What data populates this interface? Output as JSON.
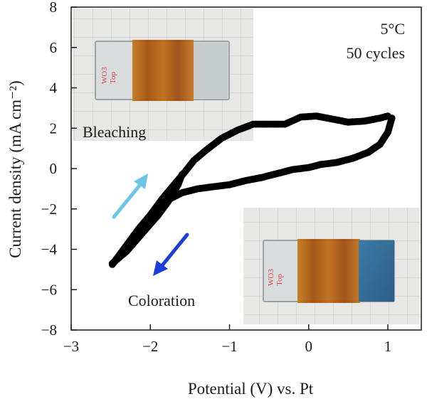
{
  "chart_data": {
    "type": "scatter",
    "title": "",
    "xlabel": "Potential (V) vs. Pt",
    "ylabel": "Current density (mA cm⁻²)",
    "xlim": [
      -3,
      1.2
    ],
    "ylim": [
      -8,
      8
    ],
    "x_ticks": [
      -3,
      -2,
      -1,
      0,
      1
    ],
    "x_tick_labels": [
      "−3",
      "−2",
      "−1",
      "0",
      "1"
    ],
    "y_ticks": [
      -8,
      -6,
      -4,
      -2,
      0,
      2,
      4,
      6,
      8
    ],
    "y_tick_labels": [
      "−8",
      "−6",
      "−4",
      "−2",
      "0",
      "2",
      "4",
      "6",
      "8"
    ],
    "grid": false,
    "series": [
      {
        "color": "#000000",
        "marker": "filled-circle",
        "curves": {
          "anodic_upper": [
            [
              -2.45,
              -4.6
            ],
            [
              -2.3,
              -3.9
            ],
            [
              -2.15,
              -3.1
            ],
            [
              -2.0,
              -2.3
            ],
            [
              -1.85,
              -1.5
            ],
            [
              -1.7,
              -0.8
            ],
            [
              -1.55,
              -0.1
            ],
            [
              -1.45,
              0.4
            ],
            [
              -1.3,
              0.9
            ],
            [
              -1.1,
              1.5
            ],
            [
              -0.9,
              1.9
            ],
            [
              -0.7,
              2.2
            ],
            [
              -0.5,
              2.2
            ],
            [
              -0.3,
              2.2
            ],
            [
              -0.1,
              2.55
            ],
            [
              0.1,
              2.6
            ],
            [
              0.3,
              2.45
            ],
            [
              0.5,
              2.3
            ],
            [
              0.7,
              2.35
            ],
            [
              0.9,
              2.5
            ],
            [
              1.0,
              2.6
            ]
          ],
          "cathodic_lower": [
            [
              1.05,
              2.5
            ],
            [
              1.0,
              1.8
            ],
            [
              0.9,
              1.2
            ],
            [
              0.75,
              0.8
            ],
            [
              0.55,
              0.5
            ],
            [
              0.35,
              0.3
            ],
            [
              0.15,
              0.2
            ],
            [
              0.0,
              0.05
            ],
            [
              -0.2,
              -0.05
            ],
            [
              -0.4,
              -0.25
            ],
            [
              -0.6,
              -0.45
            ],
            [
              -0.8,
              -0.6
            ],
            [
              -1.0,
              -0.8
            ],
            [
              -1.2,
              -0.9
            ],
            [
              -1.4,
              -1.0
            ],
            [
              -1.6,
              -1.2
            ],
            [
              -1.8,
              -1.6
            ],
            [
              -2.0,
              -2.3
            ],
            [
              -2.15,
              -3.0
            ],
            [
              -2.3,
              -3.8
            ],
            [
              -2.48,
              -4.75
            ]
          ],
          "lower_branch": [
            [
              -2.48,
              -4.7
            ],
            [
              -2.3,
              -4.1
            ],
            [
              -2.1,
              -3.2
            ],
            [
              -1.9,
              -2.3
            ],
            [
              -1.75,
              -1.5
            ],
            [
              -1.65,
              -0.8
            ],
            [
              -1.6,
              -0.3
            ]
          ]
        }
      }
    ],
    "annotations": {
      "temperature": "5°C",
      "cycles": "50 cycles",
      "bleaching": "Bleaching",
      "coloration": "Coloration"
    },
    "arrows": {
      "bleaching_color": "#6cc4e8",
      "coloration_color": "#1a3fd6"
    }
  },
  "photos": {
    "sample_label": "WO3 Top"
  }
}
